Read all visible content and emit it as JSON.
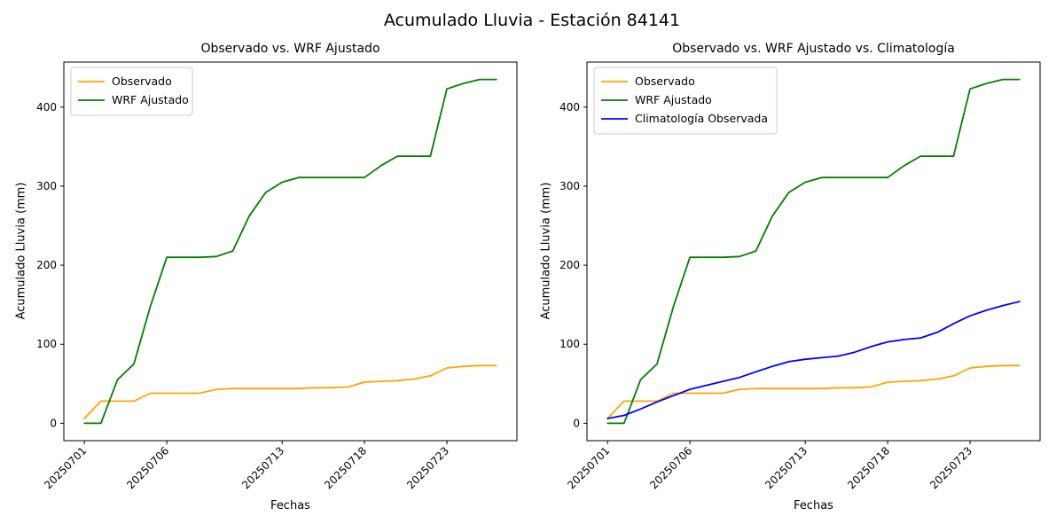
{
  "figure": {
    "title": "Acumulado Lluvia - Estación 84141"
  },
  "chart_data": [
    {
      "type": "line",
      "title": "Observado vs. WRF Ajustado",
      "xlabel": "Fechas",
      "ylabel": "Acumulado Lluvia (mm)",
      "x_tick_labels": [
        "20250701",
        "20250706",
        "20250713",
        "20250718",
        "20250723"
      ],
      "x_tick_positions": [
        0,
        5,
        12,
        17,
        22
      ],
      "x_tick_rotation": 45,
      "y_ticks": [
        0,
        100,
        200,
        300,
        400
      ],
      "ylim": [
        -22,
        457
      ],
      "xlim": [
        -1.25,
        26.25
      ],
      "grid": false,
      "legend_position": "upper left",
      "x": [
        0,
        1,
        2,
        3,
        4,
        5,
        6,
        7,
        8,
        9,
        10,
        11,
        12,
        13,
        14,
        15,
        16,
        17,
        18,
        19,
        20,
        21,
        22,
        23,
        24,
        25
      ],
      "series": [
        {
          "name": "Observado",
          "color": "#ffa500",
          "values": [
            6,
            28,
            28,
            28,
            38,
            38,
            38,
            38,
            43,
            44,
            44,
            44,
            44,
            44,
            45,
            45,
            46,
            52,
            53,
            54,
            56,
            60,
            70,
            72,
            73,
            73
          ]
        },
        {
          "name": "WRF Ajustado",
          "color": "#008000",
          "values": [
            0,
            0,
            55,
            75,
            148,
            210,
            210,
            210,
            211,
            218,
            262,
            292,
            305,
            311,
            311,
            311,
            311,
            311,
            326,
            338,
            338,
            338,
            423,
            430,
            435,
            435
          ]
        }
      ]
    },
    {
      "type": "line",
      "title": "Observado vs. WRF Ajustado vs. Climatología",
      "xlabel": "Fechas",
      "ylabel": "Acumulado Lluvia (mm)",
      "x_tick_labels": [
        "20250701",
        "20250706",
        "20250713",
        "20250718",
        "20250723"
      ],
      "x_tick_positions": [
        0,
        5,
        12,
        17,
        22
      ],
      "x_tick_rotation": 45,
      "y_ticks": [
        0,
        100,
        200,
        300,
        400
      ],
      "ylim": [
        -22,
        457
      ],
      "xlim": [
        -1.25,
        26.25
      ],
      "grid": false,
      "legend_position": "upper left",
      "x": [
        0,
        1,
        2,
        3,
        4,
        5,
        6,
        7,
        8,
        9,
        10,
        11,
        12,
        13,
        14,
        15,
        16,
        17,
        18,
        19,
        20,
        21,
        22,
        23,
        24,
        25
      ],
      "series": [
        {
          "name": "Observado",
          "color": "#ffa500",
          "values": [
            6,
            28,
            28,
            28,
            38,
            38,
            38,
            38,
            43,
            44,
            44,
            44,
            44,
            44,
            45,
            45,
            46,
            52,
            53,
            54,
            56,
            60,
            70,
            72,
            73,
            73
          ]
        },
        {
          "name": "WRF Ajustado",
          "color": "#008000",
          "values": [
            0,
            0,
            55,
            75,
            148,
            210,
            210,
            210,
            211,
            218,
            262,
            292,
            305,
            311,
            311,
            311,
            311,
            311,
            326,
            338,
            338,
            338,
            423,
            430,
            435,
            435
          ]
        },
        {
          "name": "Climatología Observada",
          "color": "#0000ff",
          "values": [
            6,
            10,
            18,
            27,
            35,
            43,
            48,
            53,
            58,
            65,
            72,
            78,
            81,
            83,
            85,
            90,
            97,
            103,
            106,
            108,
            115,
            126,
            136,
            143,
            149,
            154
          ]
        }
      ]
    }
  ]
}
